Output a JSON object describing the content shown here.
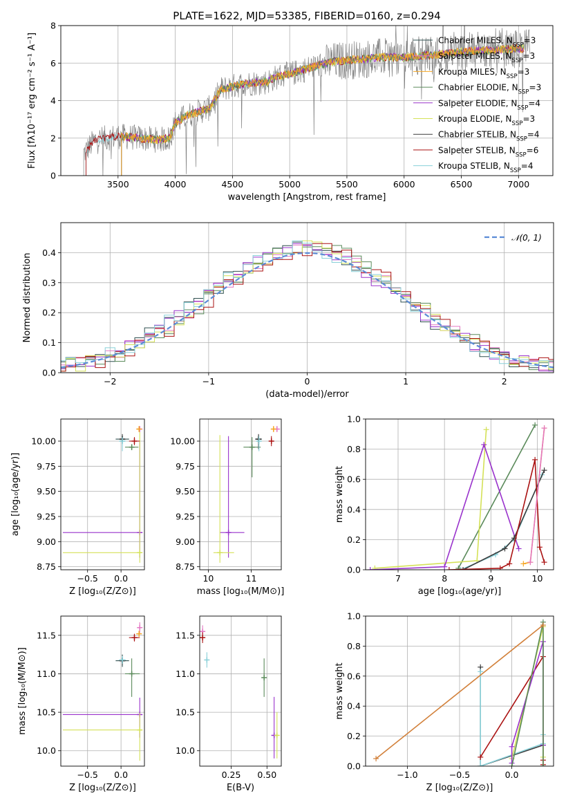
{
  "figure_title": "PLATE=1622, MJD=53385, FIBERID=0160, z=0.294",
  "colors": {
    "data": "#808080",
    "Chabrier MILES": "#2f4f4f",
    "Salpeter MILES": "#e377c2",
    "Kroupa MILES": "#f5a623",
    "Chabrier ELODIE": "#5a8a5a",
    "Salpeter ELODIE": "#9932cc",
    "Kroupa ELODIE": "#d4e157",
    "Chabrier STELIB": "#3c3c3c",
    "Salpeter STELIB": "#aa1111",
    "Kroupa STELIB": "#88d0d8",
    "normal": "#5b8bd6",
    "mw_extra": "#d2803a"
  },
  "legend_spectrum": [
    {
      "prefix": "Chabrier MILES, N",
      "sub": "SSP",
      "suffix": "=3"
    },
    {
      "prefix": "Salpeter MILES, N",
      "sub": "SSP",
      "suffix": "=3"
    },
    {
      "prefix": "Kroupa MILES, N",
      "sub": "SSP",
      "suffix": "=3"
    },
    {
      "prefix": "Chabrier ELODIE, N",
      "sub": "SSP",
      "suffix": "=3"
    },
    {
      "prefix": "Salpeter ELODIE, N",
      "sub": "SSP",
      "suffix": "=4"
    },
    {
      "prefix": "Kroupa ELODIE, N",
      "sub": "SSP",
      "suffix": "=3"
    },
    {
      "prefix": "Chabrier STELIB, N",
      "sub": "SSP",
      "suffix": "=4"
    },
    {
      "prefix": "Salpeter STELIB, N",
      "sub": "SSP",
      "suffix": "=6"
    },
    {
      "prefix": "Kroupa STELIB, N",
      "sub": "SSP",
      "suffix": "=4"
    }
  ],
  "legend_hist": "𝒩(0, 1)",
  "chart_data": [
    {
      "id": "spectrum",
      "type": "line",
      "xlabel": "wavelength [Angstrom, rest frame]",
      "ylabel": "Flux [fλ10⁻¹⁷ erg cm⁻² s⁻¹ A⁻¹]",
      "xlim": [
        3000,
        7300
      ],
      "ylim": [
        0,
        8
      ],
      "xticks": [
        3500,
        4000,
        4500,
        5000,
        5500,
        6000,
        6500,
        7000
      ],
      "yticks": [
        0,
        2,
        4,
        6,
        8
      ],
      "continuum": [
        [
          3200,
          1.2
        ],
        [
          3300,
          1.9
        ],
        [
          3500,
          2.1
        ],
        [
          3700,
          2.0
        ],
        [
          3850,
          1.9
        ],
        [
          3950,
          2.0
        ],
        [
          4000,
          2.8
        ],
        [
          4100,
          3.2
        ],
        [
          4300,
          3.6
        ],
        [
          4400,
          4.6
        ],
        [
          4600,
          4.9
        ],
        [
          4800,
          5.0
        ],
        [
          4900,
          5.3
        ],
        [
          5000,
          5.4
        ],
        [
          5200,
          5.8
        ],
        [
          5400,
          6.1
        ],
        [
          5600,
          6.2
        ],
        [
          5800,
          6.3
        ],
        [
          6000,
          6.3
        ],
        [
          6200,
          6.4
        ],
        [
          6500,
          6.6
        ],
        [
          6800,
          6.7
        ],
        [
          7100,
          6.8
        ]
      ]
    },
    {
      "id": "residuals",
      "type": "line",
      "xlabel": "(data-model)/error",
      "ylabel": "Normed distribution",
      "xlim": [
        -2.5,
        2.5
      ],
      "ylim": [
        0,
        0.5
      ],
      "xticks": [
        -2,
        -1,
        0,
        1,
        2
      ],
      "yticks": [
        0.0,
        0.1,
        0.2,
        0.3,
        0.4
      ]
    },
    {
      "id": "age_vs_Z",
      "type": "scatter",
      "xlabel": "Z [log₁₀(Z/Z⊙)]",
      "ylabel": "age  [log₁₀(age/yr)]",
      "xlim": [
        -0.9,
        0.35
      ],
      "ylim": [
        8.72,
        10.22
      ],
      "xticks": [
        -0.5,
        0.0
      ],
      "xtick_labels": [
        "−0.5",
        "0.0"
      ],
      "yticks": [
        8.75,
        9.0,
        9.25,
        9.5,
        9.75,
        10.0
      ],
      "ytick_labels": [
        "8.75",
        "9.00",
        "9.25",
        "9.50",
        "9.75",
        "10.00"
      ],
      "points": [
        {
          "m": "Chabrier MILES",
          "x": 0.02,
          "y": 10.02,
          "xe": [
            0.1,
            0.1
          ],
          "ye": [
            0.04,
            0.04
          ]
        },
        {
          "m": "Salpeter MILES",
          "x": 0.28,
          "y": 10.12,
          "xe": [
            0.02,
            0.02
          ],
          "ye": [
            0.03,
            0.03
          ]
        },
        {
          "m": "Kroupa MILES",
          "x": 0.27,
          "y": 10.12,
          "xe": [
            0.02,
            0.02
          ],
          "ye": [
            0.03,
            0.03
          ]
        },
        {
          "m": "Chabrier ELODIE",
          "x": 0.16,
          "y": 9.94,
          "xe": [
            0.1,
            0.1
          ],
          "ye": [
            0.03,
            0.03
          ]
        },
        {
          "m": "Salpeter ELODIE",
          "x": 0.28,
          "y": 9.09,
          "xe": [
            1.15,
            0.02
          ],
          "ye": [
            0.25,
            0.9
          ]
        },
        {
          "m": "Kroupa ELODIE",
          "x": 0.28,
          "y": 8.89,
          "xe": [
            1.15,
            0.02
          ],
          "ye": [
            0.1,
            1.2
          ]
        },
        {
          "m": "Chabrier STELIB",
          "x": 0.02,
          "y": 10.02,
          "xe": [
            0.05,
            0.05
          ],
          "ye": [
            0.05,
            0.05
          ]
        },
        {
          "m": "Salpeter STELIB",
          "x": 0.2,
          "y": 10.0,
          "xe": [
            0.08,
            0.08
          ],
          "ye": [
            0.04,
            0.04
          ]
        },
        {
          "m": "Kroupa STELIB",
          "x": 0.02,
          "y": 10.0,
          "xe": [
            0.05,
            0.05
          ],
          "ye": [
            0.1,
            0.04
          ]
        }
      ]
    },
    {
      "id": "age_vs_mass",
      "type": "scatter",
      "xlabel": "mass [log₁₀(M/M⊙)]",
      "ylabel": "",
      "xlim": [
        9.8,
        11.7
      ],
      "ylim": [
        8.72,
        10.22
      ],
      "xticks": [
        10,
        11
      ],
      "xtick_labels": [
        "10",
        "11"
      ],
      "yticks": [
        8.75,
        9.0,
        9.25,
        9.5,
        9.75,
        10.0
      ],
      "ytick_labels": [
        "8.75",
        "9.00",
        "9.25",
        "9.50",
        "9.75",
        "10.00"
      ],
      "points": [
        {
          "m": "Chabrier MILES",
          "x": 11.17,
          "y": 10.02,
          "xe": [
            0.08,
            0.08
          ],
          "ye": [
            0.04,
            0.04
          ]
        },
        {
          "m": "Salpeter MILES",
          "x": 11.6,
          "y": 10.12,
          "xe": [
            0.07,
            0.07
          ],
          "ye": [
            0.03,
            0.03
          ]
        },
        {
          "m": "Kroupa MILES",
          "x": 11.52,
          "y": 10.12,
          "xe": [
            0.04,
            0.04
          ],
          "ye": [
            0.03,
            0.03
          ]
        },
        {
          "m": "Chabrier ELODIE",
          "x": 11.02,
          "y": 9.94,
          "xe": [
            0.2,
            0.2
          ],
          "ye": [
            0.3,
            0.1
          ]
        },
        {
          "m": "Salpeter ELODIE",
          "x": 10.47,
          "y": 9.09,
          "xe": [
            0.2,
            0.37
          ],
          "ye": [
            0.25,
            0.96
          ]
        },
        {
          "m": "Kroupa ELODIE",
          "x": 10.27,
          "y": 8.89,
          "xe": [
            0.15,
            0.33
          ],
          "ye": [
            0.1,
            1.17
          ]
        },
        {
          "m": "Chabrier STELIB",
          "x": 11.17,
          "y": 10.02,
          "xe": [
            0.05,
            0.05
          ],
          "ye": [
            0.1,
            0.05
          ]
        },
        {
          "m": "Salpeter STELIB",
          "x": 11.47,
          "y": 10.0,
          "xe": [
            0.05,
            0.05
          ],
          "ye": [
            0.05,
            0.05
          ]
        },
        {
          "m": "Kroupa STELIB",
          "x": 11.18,
          "y": 10.0,
          "xe": [
            0.03,
            0.03
          ],
          "ye": [
            0.1,
            0.05
          ]
        }
      ]
    },
    {
      "id": "weight_vs_age",
      "type": "line",
      "xlabel": "age  [log₁₀(age/yr)]",
      "ylabel": "mass weight",
      "xlim": [
        6.3,
        10.35
      ],
      "ylim": [
        0,
        1
      ],
      "xticks": [
        7,
        8,
        9,
        10
      ],
      "xtick_labels": [
        "7",
        "8",
        "9",
        "10"
      ],
      "yticks": [
        0.0,
        0.2,
        0.4,
        0.6,
        0.8,
        1.0
      ],
      "ytick_labels": [
        "0.0",
        "0.2",
        "0.4",
        "0.6",
        "0.8",
        "1.0"
      ],
      "series": [
        {
          "m": "Chabrier ELODIE",
          "x": [
            8.3,
            9.95
          ],
          "y": [
            0.01,
            0.96
          ]
        },
        {
          "m": "Kroupa ELODIE",
          "x": [
            6.5,
            8.7,
            8.9
          ],
          "y": [
            0.01,
            0.06,
            0.93
          ]
        },
        {
          "m": "Salpeter ELODIE",
          "x": [
            6.4,
            8.0,
            8.85,
            9.6
          ],
          "y": [
            0.0,
            0.02,
            0.83,
            0.14
          ]
        },
        {
          "m": "Kroupa STELIB",
          "x": [
            8.35,
            9.1,
            9.5,
            10.1
          ],
          "y": [
            0.0,
            0.1,
            0.2,
            0.63
          ]
        },
        {
          "m": "Chabrier STELIB",
          "x": [
            8.4,
            9.3,
            9.5,
            10.15
          ],
          "y": [
            0.0,
            0.14,
            0.21,
            0.66
          ]
        },
        {
          "m": "Salpeter STELIB",
          "x": [
            8.1,
            9.2,
            9.4,
            9.95,
            10.05,
            10.15
          ],
          "y": [
            0.0,
            0.01,
            0.04,
            0.73,
            0.15,
            0.05
          ]
        },
        {
          "m": "Kroupa MILES",
          "x": [
            9.7,
            9.85,
            10.15
          ],
          "y": [
            0.04,
            0.05,
            0.94
          ]
        },
        {
          "m": "Salpeter MILES",
          "x": [
            9.85,
            10.15
          ],
          "y": [
            0.05,
            0.94
          ]
        }
      ]
    },
    {
      "id": "mass_vs_Z",
      "type": "scatter",
      "xlabel": "Z [log₁₀(Z/Z⊙)]",
      "ylabel": "mass [log₁₀(M/M⊙)]",
      "xlim": [
        -0.9,
        0.35
      ],
      "ylim": [
        9.8,
        11.75
      ],
      "xticks": [
        -0.5,
        0.0
      ],
      "xtick_labels": [
        "−0.5",
        "0.0"
      ],
      "yticks": [
        10.0,
        10.5,
        11.0,
        11.5
      ],
      "ytick_labels": [
        "10.0",
        "10.5",
        "11.0",
        "11.5"
      ],
      "points": [
        {
          "m": "Chabrier MILES",
          "x": 0.02,
          "y": 11.17,
          "xe": [
            0.1,
            0.1
          ],
          "ye": [
            0.08,
            0.08
          ]
        },
        {
          "m": "Salpeter MILES",
          "x": 0.28,
          "y": 11.6,
          "xe": [
            0.02,
            0.02
          ],
          "ye": [
            0.07,
            0.07
          ]
        },
        {
          "m": "Kroupa MILES",
          "x": 0.27,
          "y": 11.52,
          "xe": [
            0.02,
            0.02
          ],
          "ye": [
            0.04,
            0.04
          ]
        },
        {
          "m": "Chabrier ELODIE",
          "x": 0.16,
          "y": 11.0,
          "xe": [
            0.1,
            0.12
          ],
          "ye": [
            0.3,
            0.2
          ]
        },
        {
          "m": "Salpeter ELODIE",
          "x": 0.28,
          "y": 10.47,
          "xe": [
            1.15,
            0.02
          ],
          "ye": [
            0.3,
            0.22
          ]
        },
        {
          "m": "Kroupa ELODIE",
          "x": 0.28,
          "y": 10.27,
          "xe": [
            1.15,
            0.02
          ],
          "ye": [
            0.4,
            0.22
          ]
        },
        {
          "m": "Chabrier STELIB",
          "x": 0.02,
          "y": 11.17,
          "xe": [
            0.05,
            0.05
          ],
          "ye": [
            0.05,
            0.05
          ]
        },
        {
          "m": "Salpeter STELIB",
          "x": 0.2,
          "y": 11.47,
          "xe": [
            0.08,
            0.08
          ],
          "ye": [
            0.05,
            0.05
          ]
        },
        {
          "m": "Kroupa STELIB",
          "x": 0.02,
          "y": 11.18,
          "xe": [
            0.05,
            0.05
          ],
          "ye": [
            0.05,
            0.05
          ]
        }
      ]
    },
    {
      "id": "mass_vs_EBV",
      "type": "scatter",
      "xlabel": "E(B-V)",
      "ylabel": "",
      "xlim": [
        0.03,
        0.6
      ],
      "ylim": [
        9.8,
        11.75
      ],
      "xticks": [
        0.25,
        0.5
      ],
      "xtick_labels": [
        "0.25",
        "0.50"
      ],
      "yticks": [
        10.0,
        10.5,
        11.0,
        11.5
      ],
      "ytick_labels": [
        "10.0",
        "10.5",
        "11.0",
        "11.5"
      ],
      "points": [
        {
          "m": "Salpeter MILES",
          "x": 0.05,
          "y": 11.55,
          "xe": [
            0.0,
            0.0
          ],
          "ye": [
            0.08,
            0.08
          ]
        },
        {
          "m": "Salpeter STELIB",
          "x": 0.05,
          "y": 11.47,
          "xe": [
            0.0,
            0.0
          ],
          "ye": [
            0.07,
            0.07
          ]
        },
        {
          "m": "Kroupa STELIB",
          "x": 0.08,
          "y": 11.18,
          "xe": [
            0.0,
            0.0
          ],
          "ye": [
            0.1,
            0.1
          ]
        },
        {
          "m": "Chabrier ELODIE",
          "x": 0.48,
          "y": 10.95,
          "xe": [
            0.0,
            0.0
          ],
          "ye": [
            0.25,
            0.25
          ]
        },
        {
          "m": "Salpeter ELODIE",
          "x": 0.55,
          "y": 10.2,
          "xe": [
            0.0,
            0.0
          ],
          "ye": [
            0.3,
            0.5
          ]
        },
        {
          "m": "Kroupa ELODIE",
          "x": 0.57,
          "y": 10.2,
          "xe": [
            0.0,
            0.0
          ],
          "ye": [
            0.3,
            0.3
          ]
        }
      ]
    },
    {
      "id": "weight_vs_Z",
      "type": "line",
      "xlabel": "Z [log₁₀(Z/Z⊙)]",
      "ylabel": "mass weight",
      "xlim": [
        -1.4,
        0.4
      ],
      "ylim": [
        0,
        1
      ],
      "xticks": [
        -1.0,
        -0.5,
        0.0
      ],
      "xtick_labels": [
        "−1.0",
        "−0.5",
        "0.0"
      ],
      "yticks": [
        0.0,
        0.2,
        0.4,
        0.6,
        0.8,
        1.0
      ],
      "ytick_labels": [
        "0.0",
        "0.2",
        "0.4",
        "0.6",
        "0.8",
        "1.0"
      ],
      "series": [
        {
          "m": "Chabrier STELIB",
          "x": [
            -0.3,
            -0.3,
            0.3
          ],
          "y": [
            0.66,
            0.0,
            0.14
          ]
        },
        {
          "m": "Kroupa STELIB",
          "x": [
            -0.3,
            -0.3,
            0.3,
            0.3
          ],
          "y": [
            0.63,
            0.0,
            0.15,
            0.21
          ]
        },
        {
          "m": "Salpeter STELIB",
          "x": [
            -0.3,
            0.3,
            0.3,
            0.3
          ],
          "y": [
            0.06,
            0.73,
            0.01,
            0.04
          ]
        },
        {
          "m": "Kroupa ELODIE",
          "x": [
            0.0,
            0.3,
            0.3
          ],
          "y": [
            0.05,
            0.93,
            0.06
          ]
        },
        {
          "m": "Salpeter ELODIE",
          "x": [
            0.0,
            0.0,
            0.3,
            0.3
          ],
          "y": [
            0.02,
            0.13,
            0.83,
            0.14
          ]
        },
        {
          "m": "Chabrier ELODIE",
          "x": [
            0.0,
            0.3,
            0.3
          ],
          "y": [
            0.0,
            0.96,
            0.0
          ]
        },
        {
          "m": "mw_extra",
          "x": [
            -1.3,
            0.3
          ],
          "y": [
            0.05,
            0.94
          ]
        }
      ]
    }
  ]
}
